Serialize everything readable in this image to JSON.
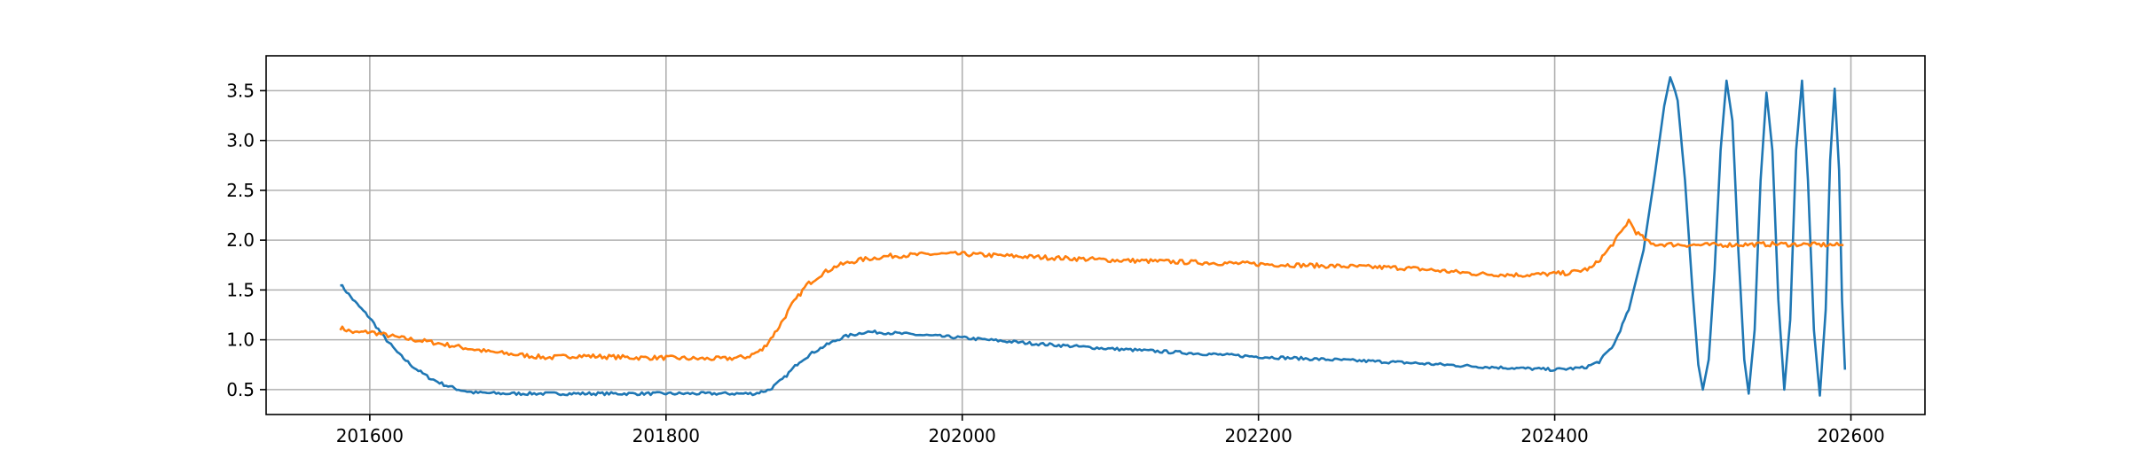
{
  "chart_data": {
    "type": "line",
    "title": "",
    "xlabel": "",
    "ylabel": "",
    "xlim": [
      201530,
      202650
    ],
    "ylim": [
      0.25,
      3.85
    ],
    "x_ticks": [
      201600,
      201800,
      202000,
      202200,
      202400,
      202600
    ],
    "x_tick_labels": [
      "201600",
      "201800",
      "202000",
      "202200",
      "202400",
      "202600"
    ],
    "y_ticks": [
      0.5,
      1.0,
      1.5,
      2.0,
      2.5,
      3.0,
      3.5
    ],
    "y_tick_labels": [
      "0.5",
      "1.0",
      "1.5",
      "2.0",
      "2.5",
      "3.0",
      "3.5"
    ],
    "grid": true,
    "legend": "none",
    "series": [
      {
        "color": "#1f77b4",
        "points": [
          [
            201580,
            1.56
          ],
          [
            201590,
            1.38
          ],
          [
            201600,
            1.22
          ],
          [
            201610,
            1.02
          ],
          [
            201620,
            0.85
          ],
          [
            201630,
            0.72
          ],
          [
            201640,
            0.62
          ],
          [
            201650,
            0.55
          ],
          [
            201660,
            0.5
          ],
          [
            201670,
            0.47
          ],
          [
            201690,
            0.46
          ],
          [
            201720,
            0.46
          ],
          [
            201760,
            0.46
          ],
          [
            201800,
            0.46
          ],
          [
            201840,
            0.46
          ],
          [
            201860,
            0.46
          ],
          [
            201870,
            0.5
          ],
          [
            201880,
            0.62
          ],
          [
            201890,
            0.78
          ],
          [
            201900,
            0.88
          ],
          [
            201910,
            0.96
          ],
          [
            201920,
            1.03
          ],
          [
            201935,
            1.08
          ],
          [
            201950,
            1.07
          ],
          [
            201970,
            1.05
          ],
          [
            202000,
            1.02
          ],
          [
            202050,
            0.96
          ],
          [
            202100,
            0.91
          ],
          [
            202150,
            0.87
          ],
          [
            202200,
            0.83
          ],
          [
            202250,
            0.8
          ],
          [
            202300,
            0.77
          ],
          [
            202350,
            0.73
          ],
          [
            202400,
            0.7
          ],
          [
            202420,
            0.72
          ],
          [
            202430,
            0.78
          ],
          [
            202440,
            0.95
          ],
          [
            202450,
            1.3
          ],
          [
            202460,
            1.9
          ],
          [
            202468,
            2.7
          ],
          [
            202474,
            3.35
          ],
          [
            202478,
            3.64
          ],
          [
            202483,
            3.4
          ],
          [
            202488,
            2.6
          ],
          [
            202493,
            1.5
          ],
          [
            202497,
            0.75
          ],
          [
            202500,
            0.5
          ],
          [
            202504,
            0.8
          ],
          [
            202508,
            1.7
          ],
          [
            202512,
            2.9
          ],
          [
            202516,
            3.6
          ],
          [
            202520,
            3.2
          ],
          [
            202524,
            1.9
          ],
          [
            202528,
            0.8
          ],
          [
            202531,
            0.46
          ],
          [
            202535,
            1.1
          ],
          [
            202539,
            2.6
          ],
          [
            202543,
            3.48
          ],
          [
            202547,
            2.9
          ],
          [
            202551,
            1.4
          ],
          [
            202555,
            0.5
          ],
          [
            202559,
            1.2
          ],
          [
            202563,
            2.9
          ],
          [
            202567,
            3.6
          ],
          [
            202571,
            2.6
          ],
          [
            202575,
            1.1
          ],
          [
            202579,
            0.44
          ],
          [
            202583,
            1.3
          ],
          [
            202586,
            2.8
          ],
          [
            202589,
            3.52
          ],
          [
            202592,
            2.7
          ],
          [
            202594,
            1.4
          ],
          [
            202596,
            0.7
          ]
        ]
      },
      {
        "color": "#ff7f0e",
        "points": [
          [
            201580,
            1.12
          ],
          [
            201590,
            1.07
          ],
          [
            201600,
            1.08
          ],
          [
            201620,
            1.02
          ],
          [
            201640,
            0.98
          ],
          [
            201660,
            0.93
          ],
          [
            201680,
            0.88
          ],
          [
            201700,
            0.85
          ],
          [
            201720,
            0.82
          ],
          [
            201740,
            0.84
          ],
          [
            201760,
            0.83
          ],
          [
            201780,
            0.82
          ],
          [
            201800,
            0.82
          ],
          [
            201820,
            0.81
          ],
          [
            201840,
            0.81
          ],
          [
            201855,
            0.83
          ],
          [
            201865,
            0.9
          ],
          [
            201875,
            1.1
          ],
          [
            201885,
            1.35
          ],
          [
            201895,
            1.55
          ],
          [
            201905,
            1.66
          ],
          [
            201915,
            1.74
          ],
          [
            201930,
            1.8
          ],
          [
            201950,
            1.84
          ],
          [
            201980,
            1.86
          ],
          [
            202000,
            1.86
          ],
          [
            202050,
            1.83
          ],
          [
            202100,
            1.8
          ],
          [
            202150,
            1.78
          ],
          [
            202200,
            1.76
          ],
          [
            202250,
            1.74
          ],
          [
            202300,
            1.72
          ],
          [
            202350,
            1.66
          ],
          [
            202380,
            1.65
          ],
          [
            202410,
            1.67
          ],
          [
            202425,
            1.72
          ],
          [
            202435,
            1.88
          ],
          [
            202445,
            2.08
          ],
          [
            202450,
            2.2
          ],
          [
            202455,
            2.08
          ],
          [
            202465,
            1.96
          ],
          [
            202500,
            1.95
          ],
          [
            202550,
            1.96
          ],
          [
            202595,
            1.95
          ]
        ]
      }
    ]
  }
}
